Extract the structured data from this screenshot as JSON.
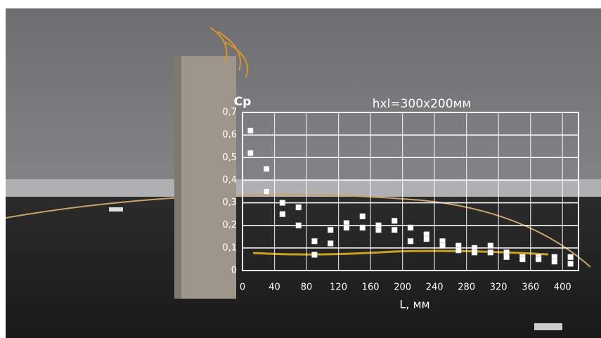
{
  "chart_data": {
    "type": "scatter",
    "title": "hxl=300x200мм",
    "y_label": "Cp",
    "x_label": "L, мм",
    "x": [
      10,
      30,
      50,
      70,
      90,
      110,
      130,
      150,
      170,
      190,
      210,
      230,
      250,
      270,
      290,
      310,
      330,
      350,
      370,
      390,
      410
    ],
    "series": [
      {
        "color": "#ffffff",
        "values": [
          0.62,
          0.45,
          0.3,
          0.28,
          0.13,
          0.18,
          0.21,
          0.24,
          0.2,
          0.22,
          0.19,
          0.16,
          0.13,
          0.11,
          0.1,
          0.11,
          0.08,
          0.06,
          0.06,
          0.06,
          0.06
        ]
      },
      {
        "color": "#ffffff",
        "values": [
          0.52,
          0.35,
          0.25,
          0.2,
          0.07,
          0.12,
          0.19,
          0.19,
          0.18,
          0.18,
          0.13,
          0.14,
          0.11,
          0.09,
          0.08,
          0.08,
          0.06,
          0.05,
          0.05,
          0.04,
          0.03
        ]
      }
    ],
    "xlim": [
      0,
      420
    ],
    "ylim": [
      0,
      0.7
    ],
    "xticks": [
      0,
      40,
      80,
      120,
      160,
      200,
      240,
      280,
      320,
      360,
      400
    ],
    "yticks": [
      0,
      {
        "value": 0.1,
        "label": "0,1"
      },
      {
        "value": 0.2,
        "label": "0,2"
      },
      {
        "value": 0.3,
        "label": "0,3"
      },
      {
        "value": 0.4,
        "label": "0,4"
      },
      {
        "value": 0.5,
        "label": "0,5"
      },
      {
        "value": 0.6,
        "label": "0,6"
      },
      {
        "value": 0.7,
        "label": "0,7"
      }
    ],
    "grid": true
  }
}
